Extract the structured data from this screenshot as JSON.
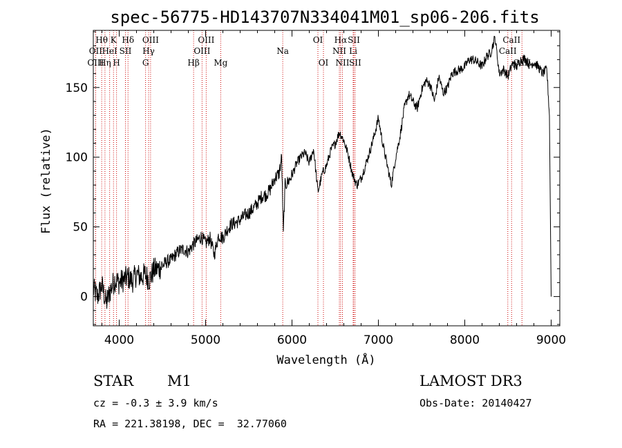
{
  "chart_data": {
    "type": "line",
    "title": "spec-56775-HD143707N334041M01_sp06-206.fits",
    "xlabel": "Wavelength (Å)",
    "ylabel": "Flux (relative)",
    "xlim": [
      3700,
      9100
    ],
    "ylim": [
      -21,
      191
    ],
    "xticks": [
      4000,
      5000,
      6000,
      7000,
      8000,
      9000
    ],
    "yticks": [
      0,
      50,
      100,
      150
    ],
    "series": [
      {
        "name": "flux",
        "x": [
          3700,
          3750,
          3800,
          3850,
          3900,
          3950,
          4000,
          4050,
          4100,
          4150,
          4200,
          4250,
          4300,
          4350,
          4400,
          4450,
          4500,
          4550,
          4600,
          4650,
          4700,
          4750,
          4800,
          4850,
          4900,
          4950,
          5000,
          5050,
          5100,
          5150,
          5200,
          5250,
          5300,
          5350,
          5400,
          5450,
          5500,
          5550,
          5600,
          5650,
          5700,
          5750,
          5800,
          5850,
          5880,
          5900,
          5920,
          5950,
          6000,
          6050,
          6100,
          6150,
          6200,
          6250,
          6300,
          6350,
          6400,
          6450,
          6500,
          6550,
          6600,
          6650,
          6700,
          6750,
          6800,
          6850,
          6900,
          6950,
          7000,
          7050,
          7100,
          7150,
          7200,
          7250,
          7300,
          7350,
          7400,
          7450,
          7500,
          7550,
          7600,
          7650,
          7700,
          7750,
          7800,
          7850,
          7900,
          7950,
          8000,
          8050,
          8100,
          8150,
          8200,
          8250,
          8300,
          8350,
          8400,
          8450,
          8500,
          8550,
          8600,
          8650,
          8700,
          8750,
          8800,
          8850,
          8900,
          8950,
          8980,
          9000
        ],
        "values": [
          5,
          0,
          8,
          -5,
          5,
          12,
          10,
          12,
          14,
          11,
          16,
          14,
          16,
          12,
          19,
          20,
          22,
          25,
          26,
          30,
          33,
          34,
          32,
          37,
          40,
          43,
          38,
          42,
          30,
          44,
          42,
          48,
          52,
          53,
          55,
          58,
          60,
          63,
          67,
          72,
          73,
          77,
          85,
          88,
          100,
          45,
          80,
          82,
          87,
          95,
          100,
          103,
          96,
          106,
          75,
          88,
          94,
          105,
          110,
          118,
          112,
          102,
          88,
          80,
          85,
          94,
          104,
          115,
          128,
          110,
          95,
          80,
          100,
          115,
          135,
          145,
          140,
          135,
          148,
          155,
          152,
          140,
          158,
          146,
          150,
          160,
          162,
          163,
          165,
          170,
          170,
          168,
          165,
          172,
          175,
          186,
          160,
          163,
          158,
          167,
          165,
          170,
          171,
          166,
          168,
          165,
          160,
          163,
          130,
          0
        ]
      }
    ],
    "spectral_lines": [
      {
        "label": "Hθ",
        "wavelength": 3797,
        "row": 1
      },
      {
        "label": "OII",
        "wavelength": 3727,
        "row": 2
      },
      {
        "label": "OIII",
        "wavelength": 3727,
        "row": 3
      },
      {
        "label": "K",
        "wavelength": 3934,
        "row": 1
      },
      {
        "label": "HeI",
        "wavelength": 3889,
        "row": 2
      },
      {
        "label": "Hη",
        "wavelength": 3835,
        "row": 3
      },
      {
        "label": "Hδ",
        "wavelength": 4102,
        "row": 1
      },
      {
        "label": "SII",
        "wavelength": 4072,
        "row": 2
      },
      {
        "label": "H",
        "wavelength": 3969,
        "row": 3
      },
      {
        "label": "OIII",
        "wavelength": 4363,
        "row": 1
      },
      {
        "label": "Hγ",
        "wavelength": 4340,
        "row": 2
      },
      {
        "label": "G",
        "wavelength": 4305,
        "row": 3
      },
      {
        "label": "OIII",
        "wavelength": 5007,
        "row": 1
      },
      {
        "label": "OIII",
        "wavelength": 4959,
        "row": 2
      },
      {
        "label": "Hβ",
        "wavelength": 4861,
        "row": 3
      },
      {
        "label": "Mg",
        "wavelength": 5175,
        "row": 3
      },
      {
        "label": "Na",
        "wavelength": 5893,
        "row": 2
      },
      {
        "label": "OI",
        "wavelength": 6300,
        "row": 1
      },
      {
        "label": "OI",
        "wavelength": 6364,
        "row": 3
      },
      {
        "label": "Hα",
        "wavelength": 6563,
        "row": 1
      },
      {
        "label": "NII",
        "wavelength": 6548,
        "row": 2
      },
      {
        "label": "NII",
        "wavelength": 6584,
        "row": 3
      },
      {
        "label": "SII",
        "wavelength": 6716,
        "row": 1
      },
      {
        "label": "Li",
        "wavelength": 6708,
        "row": 2
      },
      {
        "label": "SII",
        "wavelength": 6731,
        "row": 3
      },
      {
        "label": "CaII",
        "wavelength": 8542,
        "row": 1
      },
      {
        "label": "CaII",
        "wavelength": 8498,
        "row": 2
      },
      {
        "label": "CaII",
        "wavelength": 8662,
        "row": 3
      }
    ]
  },
  "info": {
    "object_class": "STAR",
    "subclass": "M1",
    "survey": "LAMOST DR3",
    "redshift": "cz = -0.3 ± 3.9 km/s",
    "obs_date": "Obs-Date: 20140427",
    "coords": "RA = 221.38198, DEC =  32.77060"
  },
  "colors": {
    "line_marker": "#cc0000",
    "spectrum": "#000000",
    "axes": "#000000"
  }
}
